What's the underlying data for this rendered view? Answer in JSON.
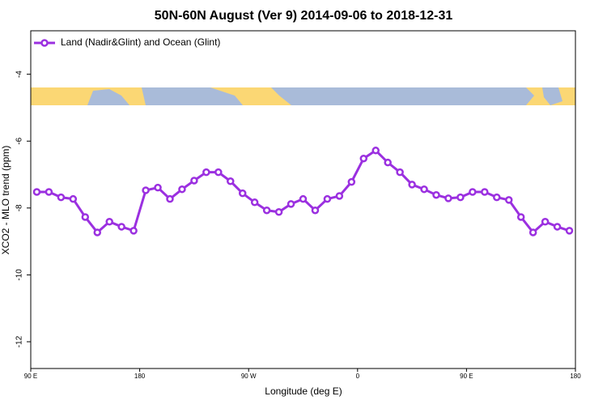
{
  "chart_data": {
    "type": "line",
    "title": "50N-60N August (Ver 9)   2014-09-06 to 2018-12-31",
    "x_label": "Longitude (deg E)",
    "y_label": "XCO2 - MLO trend (ppm)",
    "x": [
      95,
      105,
      115,
      125,
      135,
      145,
      155,
      165,
      175,
      185,
      195,
      205,
      215,
      225,
      235,
      245,
      255,
      265,
      275,
      285,
      295,
      305,
      315,
      325,
      335,
      345,
      355,
      365,
      375,
      385,
      395,
      405,
      415,
      425,
      435,
      445,
      455,
      465,
      475,
      485,
      495,
      505,
      515,
      525,
      535
    ],
    "series": [
      {
        "name": "Land (Nadir&Glint) and Ocean (Glint)",
        "color": "#9b30e0",
        "values": [
          -7.52,
          -7.52,
          -7.68,
          -7.73,
          -8.27,
          -8.73,
          -8.41,
          -8.56,
          -8.68,
          -7.47,
          -7.39,
          -7.73,
          -7.44,
          -7.18,
          -6.93,
          -6.93,
          -7.2,
          -7.56,
          -7.83,
          -8.07,
          -8.12,
          -7.88,
          -7.73,
          -8.07,
          -7.73,
          -7.64,
          -7.22,
          -6.52,
          -6.28,
          -6.64,
          -6.93,
          -7.3,
          -7.44,
          -7.61,
          -7.71,
          -7.68,
          -7.52,
          -7.52,
          -7.68,
          -7.76,
          -8.27,
          -8.73,
          -8.41,
          -8.56,
          -8.68
        ]
      }
    ],
    "xlim": [
      90,
      540
    ],
    "xticks": [
      {
        "value": 90,
        "label": "90 E"
      },
      180,
      {
        "value": 270,
        "label": "90 W"
      },
      {
        "value": 360,
        "label": "0"
      },
      {
        "value": 450,
        "label": "90 E"
      },
      {
        "value": 540,
        "label": "180"
      }
    ],
    "ylim": [
      -12.8,
      -2.7
    ],
    "yticks": [
      -4,
      -6,
      -8,
      -10,
      -12
    ],
    "legend": "top-left"
  }
}
